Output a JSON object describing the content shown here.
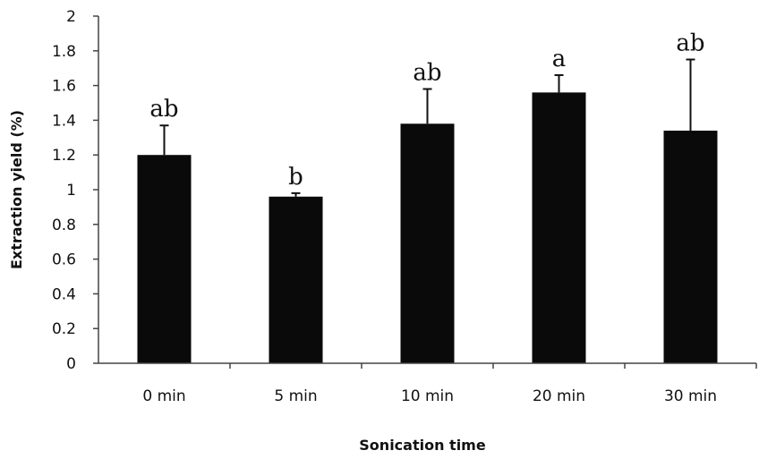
{
  "chart_data": {
    "type": "bar",
    "categories": [
      "0 min",
      "5 min",
      "10 min",
      "20 min",
      "30 min"
    ],
    "values": [
      1.2,
      0.96,
      1.38,
      1.56,
      1.34
    ],
    "error_upper": [
      1.37,
      0.98,
      1.58,
      1.66,
      1.75
    ],
    "significance_labels": [
      "ab",
      "b",
      "ab",
      "a",
      "ab"
    ],
    "xlabel": "Sonication time",
    "ylabel": "Extraction yield (%)",
    "ylim": [
      0,
      2
    ],
    "yticks": [
      "0",
      "0.2",
      "0.4",
      "0.6",
      "0.8",
      "1",
      "1.2",
      "1.4",
      "1.6",
      "1.8",
      "2"
    ],
    "grid": false,
    "bar_color": "#0a0a0a"
  }
}
